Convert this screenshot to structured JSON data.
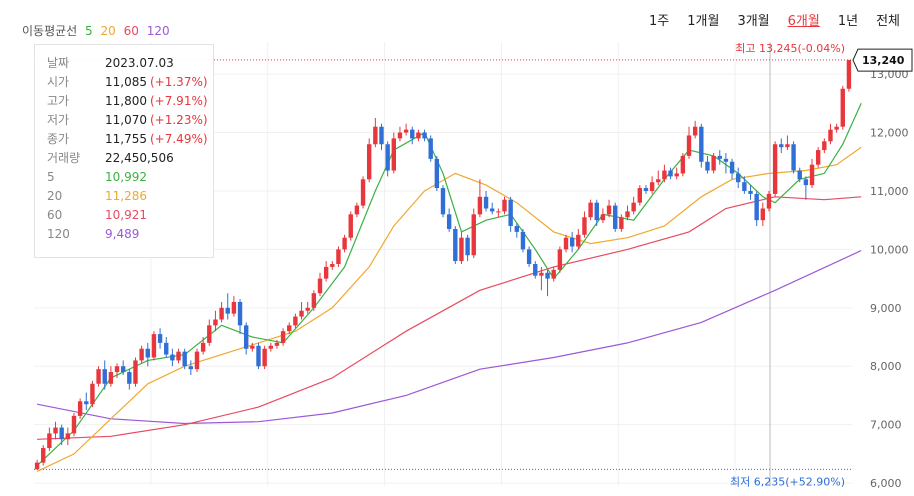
{
  "legend": {
    "label": "이동평균선",
    "ma5": "5",
    "ma20": "20",
    "ma60": "60",
    "ma120": "120"
  },
  "periods": [
    "1주",
    "1개월",
    "3개월",
    "6개월",
    "1년",
    "전체"
  ],
  "active_period": "6개월",
  "info": {
    "date_label": "날짜",
    "date": "2023.07.03",
    "open_label": "시가",
    "open": "11,085",
    "open_chg": "(+1.37%)",
    "high_label": "고가",
    "high": "11,800",
    "high_chg": "(+7.91%)",
    "low_label": "저가",
    "low": "11,070",
    "low_chg": "(+1.23%)",
    "close_label": "종가",
    "close": "11,755",
    "close_chg": "(+7.49%)",
    "volume_label": "거래량",
    "volume": "22,450,506",
    "ma5_label": "5",
    "ma5": "10,992",
    "ma20_label": "20",
    "ma20": "11,286",
    "ma60_label": "60",
    "ma60": "10,921",
    "ma120_label": "120",
    "ma120": "9,489"
  },
  "annotations": {
    "max_label": "최고 13,245(-0.04%)",
    "min_label": "최저 6,235(+52.90%)",
    "current_price": "13,240"
  },
  "colors": {
    "up": "#e8363d",
    "down": "#2f6fd6",
    "ma5": "#3cb043",
    "ma20": "#f0a830",
    "ma60": "#e84a5f",
    "ma120": "#9b59d9"
  },
  "chart_data": {
    "type": "candlestick",
    "yticks": [
      6000,
      7000,
      8000,
      9000,
      10000,
      11000,
      12000,
      13000
    ],
    "ylim": [
      5950,
      13550
    ],
    "max": 13245,
    "min": 6235,
    "last": 13240,
    "candles": [
      [
        6235,
        6350,
        6235,
        6400
      ],
      [
        6350,
        6600,
        6300,
        6650
      ],
      [
        6600,
        6850,
        6550,
        6950
      ],
      [
        6850,
        6950,
        6750,
        7050
      ],
      [
        6950,
        6750,
        6650,
        7000
      ],
      [
        6750,
        6850,
        6650,
        6950
      ],
      [
        6850,
        7150,
        6800,
        7200
      ],
      [
        7150,
        7400,
        7100,
        7450
      ],
      [
        7400,
        7350,
        7250,
        7550
      ],
      [
        7350,
        7700,
        7300,
        7750
      ],
      [
        7700,
        7950,
        7650,
        8000
      ],
      [
        7950,
        7700,
        7600,
        8100
      ],
      [
        7700,
        7900,
        7650,
        8000
      ],
      [
        7900,
        8000,
        7800,
        8050
      ],
      [
        8000,
        7900,
        7850,
        8100
      ],
      [
        7900,
        7700,
        7600,
        7950
      ],
      [
        7700,
        8100,
        7650,
        8150
      ],
      [
        8100,
        8300,
        8050,
        8350
      ],
      [
        8300,
        8150,
        8000,
        8400
      ],
      [
        8150,
        8550,
        8100,
        8600
      ],
      [
        8550,
        8400,
        8300,
        8650
      ],
      [
        8400,
        8200,
        8150,
        8500
      ],
      [
        8200,
        8100,
        8000,
        8300
      ],
      [
        8100,
        8250,
        8050,
        8300
      ],
      [
        8250,
        8000,
        7950,
        8300
      ],
      [
        8000,
        7950,
        7850,
        8100
      ],
      [
        7950,
        8250,
        7900,
        8300
      ],
      [
        8250,
        8400,
        8200,
        8500
      ],
      [
        8400,
        8700,
        8350,
        8800
      ],
      [
        8700,
        8800,
        8600,
        8950
      ],
      [
        8800,
        9000,
        8750,
        9100
      ],
      [
        9000,
        8900,
        8800,
        9250
      ],
      [
        8900,
        9100,
        8850,
        9200
      ],
      [
        9100,
        8700,
        8550,
        9150
      ],
      [
        8700,
        8300,
        8200,
        8750
      ],
      [
        8300,
        8350,
        8250,
        8400
      ],
      [
        8350,
        8000,
        7950,
        8400
      ],
      [
        8000,
        8300,
        7950,
        8350
      ],
      [
        8300,
        8350,
        8250,
        8400
      ],
      [
        8350,
        8400,
        8300,
        8450
      ],
      [
        8400,
        8600,
        8350,
        8650
      ],
      [
        8600,
        8700,
        8550,
        8750
      ],
      [
        8700,
        8850,
        8650,
        8900
      ],
      [
        8850,
        8950,
        8800,
        9100
      ],
      [
        8950,
        9000,
        8900,
        9100
      ],
      [
        9000,
        9250,
        8950,
        9300
      ],
      [
        9250,
        9500,
        9200,
        9600
      ],
      [
        9500,
        9700,
        9450,
        9800
      ],
      [
        9700,
        9750,
        9650,
        9800
      ],
      [
        9750,
        10000,
        9700,
        10050
      ],
      [
        10000,
        10200,
        9950,
        10250
      ],
      [
        10200,
        10600,
        10150,
        10650
      ],
      [
        10600,
        10750,
        10550,
        10800
      ],
      [
        10750,
        11200,
        10700,
        11250
      ],
      [
        11200,
        11800,
        11150,
        11900
      ],
      [
        11800,
        12100,
        11750,
        12250
      ],
      [
        12100,
        11800,
        11700,
        12150
      ],
      [
        11800,
        11350,
        11250,
        11850
      ],
      [
        11350,
        11900,
        11300,
        12000
      ],
      [
        11900,
        12000,
        11850,
        12100
      ],
      [
        12000,
        12050,
        11950,
        12150
      ],
      [
        12050,
        11900,
        11800,
        12100
      ],
      [
        11900,
        12000,
        11850,
        12050
      ],
      [
        12000,
        11900,
        11850,
        12050
      ],
      [
        11900,
        11550,
        11500,
        11950
      ],
      [
        11550,
        11050,
        11000,
        11600
      ],
      [
        11050,
        10600,
        10550,
        11100
      ],
      [
        10600,
        10350,
        10300,
        10700
      ],
      [
        10350,
        9800,
        9750,
        10400
      ],
      [
        9800,
        10200,
        9750,
        10300
      ],
      [
        10200,
        9900,
        9800,
        10250
      ],
      [
        9900,
        10600,
        9850,
        10700
      ],
      [
        10600,
        10900,
        10550,
        11200
      ],
      [
        10900,
        10700,
        10650,
        11000
      ],
      [
        10700,
        10650,
        10600,
        10800
      ],
      [
        10650,
        10650,
        10550,
        10700
      ],
      [
        10650,
        10850,
        10600,
        10900
      ],
      [
        10850,
        10400,
        10300,
        10900
      ],
      [
        10400,
        10300,
        10200,
        10450
      ],
      [
        10300,
        10000,
        9950,
        10350
      ],
      [
        10000,
        9750,
        9700,
        10050
      ],
      [
        9750,
        9550,
        9500,
        9800
      ],
      [
        9550,
        9600,
        9300,
        9700
      ],
      [
        9600,
        9500,
        9200,
        9650
      ],
      [
        9500,
        9650,
        9450,
        9700
      ],
      [
        9650,
        10000,
        9600,
        10050
      ],
      [
        10000,
        10200,
        9950,
        10250
      ],
      [
        10200,
        10050,
        9950,
        10300
      ],
      [
        10050,
        10250,
        10000,
        10350
      ],
      [
        10250,
        10550,
        10200,
        10650
      ],
      [
        10550,
        10800,
        10500,
        10850
      ],
      [
        10800,
        10500,
        10400,
        10850
      ],
      [
        10500,
        10600,
        10450,
        10700
      ],
      [
        10600,
        10750,
        10550,
        10850
      ],
      [
        10750,
        10350,
        10300,
        10800
      ],
      [
        10350,
        10550,
        10300,
        10600
      ],
      [
        10550,
        10650,
        10500,
        10750
      ],
      [
        10650,
        10800,
        10600,
        10900
      ],
      [
        10800,
        11050,
        10750,
        11100
      ],
      [
        11050,
        11000,
        10950,
        11100
      ],
      [
        11000,
        11150,
        10950,
        11250
      ],
      [
        11150,
        11200,
        11100,
        11350
      ],
      [
        11200,
        11350,
        11150,
        11450
      ],
      [
        11350,
        11250,
        11200,
        11400
      ],
      [
        11250,
        11300,
        11200,
        11400
      ],
      [
        11300,
        11600,
        11250,
        11650
      ],
      [
        11600,
        11950,
        11550,
        12100
      ],
      [
        11950,
        12100,
        11900,
        12200
      ],
      [
        12100,
        11500,
        11400,
        12150
      ],
      [
        11500,
        11350,
        11300,
        11600
      ],
      [
        11350,
        11600,
        11300,
        11650
      ],
      [
        11600,
        11550,
        11450,
        11700
      ],
      [
        11550,
        11500,
        11300,
        11650
      ],
      [
        11500,
        11300,
        11200,
        11550
      ],
      [
        11300,
        11150,
        11050,
        11400
      ],
      [
        11150,
        11000,
        10950,
        11250
      ],
      [
        11000,
        10950,
        10850,
        11100
      ],
      [
        10950,
        10500,
        10400,
        11000
      ],
      [
        10500,
        10700,
        10400,
        10800
      ],
      [
        10700,
        10950,
        10650,
        11000
      ],
      [
        10950,
        11800,
        10900,
        11850
      ],
      [
        11800,
        11750,
        11650,
        11900
      ],
      [
        11750,
        11800,
        11700,
        11950
      ],
      [
        11800,
        11350,
        11300,
        11850
      ],
      [
        11350,
        11200,
        11150,
        11400
      ],
      [
        11200,
        11100,
        10850,
        11250
      ],
      [
        11100,
        11450,
        11050,
        11550
      ],
      [
        11450,
        11700,
        11400,
        11750
      ],
      [
        11700,
        11850,
        11650,
        11900
      ],
      [
        11850,
        12050,
        11800,
        12150
      ],
      [
        12050,
        12100,
        12000,
        12150
      ],
      [
        12100,
        12750,
        12050,
        12800
      ],
      [
        12750,
        13240,
        12700,
        13245
      ]
    ],
    "ma5": [
      [
        0,
        6300
      ],
      [
        6,
        6900
      ],
      [
        12,
        7800
      ],
      [
        18,
        8100
      ],
      [
        24,
        8200
      ],
      [
        30,
        8700
      ],
      [
        35,
        8500
      ],
      [
        40,
        8400
      ],
      [
        45,
        9000
      ],
      [
        50,
        9700
      ],
      [
        55,
        11000
      ],
      [
        58,
        11700
      ],
      [
        63,
        12000
      ],
      [
        66,
        11300
      ],
      [
        69,
        10300
      ],
      [
        73,
        10500
      ],
      [
        77,
        10600
      ],
      [
        81,
        10000
      ],
      [
        84,
        9500
      ],
      [
        88,
        10000
      ],
      [
        92,
        10600
      ],
      [
        97,
        10500
      ],
      [
        102,
        11200
      ],
      [
        106,
        11700
      ],
      [
        110,
        11600
      ],
      [
        114,
        11300
      ],
      [
        118,
        10900
      ],
      [
        120,
        10800
      ],
      [
        124,
        11200
      ],
      [
        128,
        11300
      ],
      [
        131,
        11800
      ],
      [
        134,
        12500
      ]
    ],
    "ma20": [
      [
        0,
        6200
      ],
      [
        6,
        6500
      ],
      [
        12,
        7100
      ],
      [
        18,
        7700
      ],
      [
        24,
        8000
      ],
      [
        30,
        8200
      ],
      [
        36,
        8400
      ],
      [
        42,
        8600
      ],
      [
        48,
        9000
      ],
      [
        54,
        9700
      ],
      [
        58,
        10400
      ],
      [
        63,
        11000
      ],
      [
        68,
        11300
      ],
      [
        73,
        11100
      ],
      [
        78,
        10800
      ],
      [
        84,
        10300
      ],
      [
        90,
        10100
      ],
      [
        96,
        10200
      ],
      [
        102,
        10400
      ],
      [
        108,
        10900
      ],
      [
        113,
        11200
      ],
      [
        119,
        11300
      ],
      [
        125,
        11350
      ],
      [
        130,
        11450
      ],
      [
        134,
        11750
      ]
    ],
    "ma60": [
      [
        0,
        6750
      ],
      [
        12,
        6800
      ],
      [
        24,
        7000
      ],
      [
        36,
        7300
      ],
      [
        48,
        7800
      ],
      [
        60,
        8600
      ],
      [
        72,
        9300
      ],
      [
        84,
        9700
      ],
      [
        96,
        10000
      ],
      [
        106,
        10300
      ],
      [
        112,
        10700
      ],
      [
        120,
        10900
      ],
      [
        128,
        10850
      ],
      [
        134,
        10900
      ]
    ],
    "ma120": [
      [
        0,
        7350
      ],
      [
        12,
        7100
      ],
      [
        24,
        7020
      ],
      [
        36,
        7050
      ],
      [
        48,
        7200
      ],
      [
        60,
        7500
      ],
      [
        72,
        7950
      ],
      [
        84,
        8150
      ],
      [
        96,
        8400
      ],
      [
        108,
        8750
      ],
      [
        120,
        9300
      ],
      [
        134,
        9980
      ]
    ]
  }
}
